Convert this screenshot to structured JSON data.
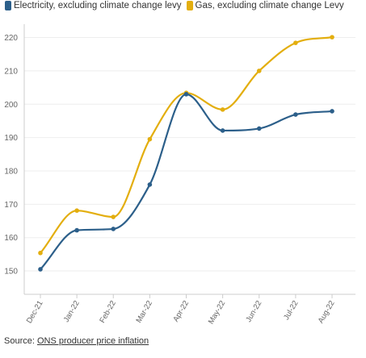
{
  "colors": {
    "electricity": "#2c5f8a",
    "gas": "#e3ae0e"
  },
  "legend": {
    "electricity_label": "Electricity, excluding climate change levy",
    "gas_label": "Gas, excluding climate change Levy"
  },
  "source": {
    "prefix": "Source: ",
    "link_text": "ONS producer price inflation"
  },
  "chart_data": {
    "type": "line",
    "x": [
      "Dec-21",
      "Jan-22",
      "Feb-22",
      "Mar-22",
      "Apr-22",
      "May-22",
      "Jun-22",
      "Jul-22",
      "Aug-22"
    ],
    "series": [
      {
        "name": "Electricity, excluding climate change levy",
        "values": [
          150.5,
          162.2,
          162.6,
          175.9,
          203.0,
          192.1,
          192.7,
          196.9,
          197.9
        ]
      },
      {
        "name": "Gas, excluding climate change Levy",
        "values": [
          155.4,
          168.1,
          166.2,
          189.5,
          203.4,
          198.4,
          210.0,
          218.4,
          220.1
        ]
      }
    ],
    "yticks": [
      150,
      160,
      170,
      180,
      190,
      200,
      210,
      220
    ],
    "ylim": [
      143,
      224
    ],
    "grid": true,
    "legend_position": "top-left",
    "xlabel": "",
    "ylabel": ""
  }
}
